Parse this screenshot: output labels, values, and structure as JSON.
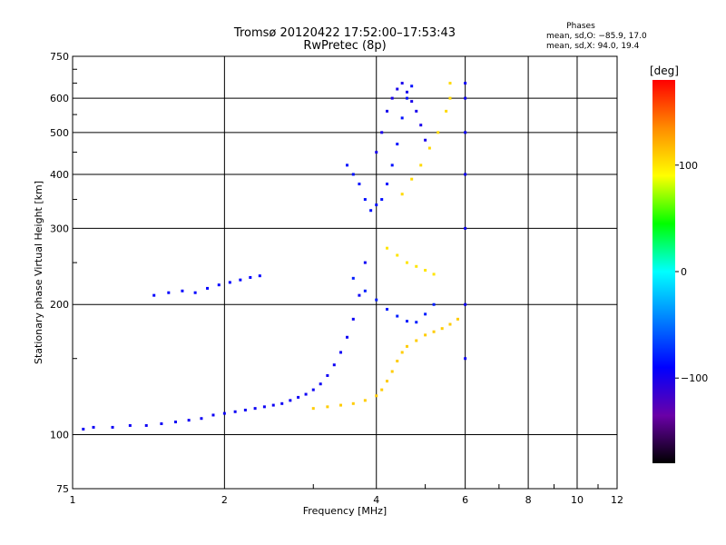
{
  "chart_data": {
    "type": "scatter",
    "title": "Tromsø 20120422 17:52:00–17:53:43",
    "subtitle": "RwPretec (8p)",
    "xlabel": "Frequency [MHz]",
    "ylabel": "Stationary phase Virtual Height [km]",
    "x_scale": "log",
    "y_scale": "log",
    "xlim": [
      1,
      12
    ],
    "ylim": [
      75,
      750
    ],
    "x_ticks": [
      1,
      2,
      4,
      6,
      8,
      10,
      12
    ],
    "x_tick_labels": [
      "1",
      "2",
      "4",
      "6",
      "8",
      "10",
      "12"
    ],
    "y_ticks": [
      75,
      100,
      200,
      300,
      400,
      500,
      600,
      750
    ],
    "y_tick_labels": [
      "75",
      "100",
      "200",
      "300",
      "400",
      "500",
      "600",
      "750"
    ],
    "grid": true,
    "stats": {
      "heading": "Phases",
      "line_o": "mean, sd,O: −85.9, 17.0",
      "line_x": "mean, sd,X:  94.0, 19.4"
    },
    "colorbar": {
      "label": "[deg]",
      "range": [
        -180,
        180
      ],
      "ticks": [
        100,
        0,
        -100
      ],
      "tick_labels": [
        "100",
        "0",
        "−100"
      ],
      "colors": [
        "#ff0000",
        "#ff8c00",
        "#ffff00",
        "#00ff00",
        "#00ffff",
        "#0080ff",
        "#0000ff",
        "#6a00a8",
        "#000000"
      ]
    },
    "series": [
      {
        "phase": -95,
        "points": [
          [
            1.05,
            103
          ],
          [
            1.1,
            104
          ],
          [
            1.2,
            104
          ],
          [
            1.3,
            105
          ],
          [
            1.4,
            105
          ],
          [
            1.5,
            106
          ],
          [
            1.6,
            107
          ],
          [
            1.7,
            108
          ],
          [
            1.8,
            109
          ],
          [
            1.9,
            111
          ],
          [
            2.0,
            112
          ],
          [
            2.1,
            113
          ],
          [
            2.2,
            114
          ],
          [
            2.3,
            115
          ],
          [
            2.4,
            116
          ],
          [
            2.5,
            117
          ],
          [
            2.6,
            118
          ],
          [
            2.7,
            120
          ],
          [
            2.8,
            122
          ],
          [
            2.9,
            124
          ],
          [
            3.0,
            127
          ],
          [
            3.1,
            131
          ],
          [
            3.2,
            137
          ],
          [
            3.3,
            145
          ],
          [
            3.4,
            155
          ],
          [
            3.5,
            168
          ],
          [
            3.6,
            185
          ],
          [
            3.7,
            210
          ],
          [
            3.8,
            250
          ]
        ]
      },
      {
        "phase": -90,
        "points": [
          [
            1.45,
            210
          ],
          [
            1.55,
            213
          ],
          [
            1.65,
            215
          ],
          [
            1.75,
            213
          ],
          [
            1.85,
            218
          ],
          [
            1.95,
            222
          ],
          [
            2.05,
            225
          ],
          [
            2.15,
            228
          ],
          [
            2.25,
            231
          ],
          [
            2.35,
            233
          ]
        ]
      },
      {
        "phase": -85,
        "points": [
          [
            3.5,
            420
          ],
          [
            3.6,
            400
          ],
          [
            3.7,
            380
          ],
          [
            3.8,
            350
          ],
          [
            3.9,
            330
          ],
          [
            4.0,
            340
          ],
          [
            4.1,
            350
          ],
          [
            4.2,
            380
          ],
          [
            4.3,
            420
          ],
          [
            4.4,
            470
          ],
          [
            4.5,
            540
          ],
          [
            4.6,
            600
          ],
          [
            4.7,
            640
          ]
        ]
      },
      {
        "phase": -100,
        "points": [
          [
            4.0,
            450
          ],
          [
            4.1,
            500
          ],
          [
            4.2,
            560
          ],
          [
            4.3,
            600
          ],
          [
            4.4,
            630
          ],
          [
            4.5,
            650
          ],
          [
            4.6,
            620
          ],
          [
            4.7,
            590
          ],
          [
            4.8,
            560
          ],
          [
            4.9,
            520
          ],
          [
            5.0,
            480
          ]
        ]
      },
      {
        "phase": -80,
        "points": [
          [
            3.6,
            230
          ],
          [
            3.8,
            215
          ],
          [
            4.0,
            205
          ],
          [
            4.2,
            195
          ],
          [
            4.4,
            188
          ],
          [
            4.6,
            183
          ],
          [
            4.8,
            182
          ],
          [
            5.0,
            190
          ],
          [
            5.2,
            200
          ]
        ]
      },
      {
        "phase": -95,
        "points": [
          [
            6.0,
            150
          ],
          [
            6.0,
            200
          ],
          [
            6.0,
            300
          ],
          [
            6.0,
            400
          ],
          [
            6.0,
            500
          ],
          [
            6.0,
            600
          ],
          [
            6.0,
            650
          ]
        ]
      },
      {
        "phase": 110,
        "points": [
          [
            3.0,
            115
          ],
          [
            3.2,
            116
          ],
          [
            3.4,
            117
          ],
          [
            3.6,
            118
          ],
          [
            3.8,
            120
          ],
          [
            4.0,
            123
          ],
          [
            4.1,
            127
          ],
          [
            4.2,
            133
          ],
          [
            4.3,
            140
          ],
          [
            4.4,
            148
          ],
          [
            4.5,
            155
          ],
          [
            4.6,
            160
          ],
          [
            4.8,
            165
          ],
          [
            5.0,
            170
          ],
          [
            5.2,
            173
          ],
          [
            5.4,
            176
          ],
          [
            5.6,
            180
          ],
          [
            5.8,
            185
          ]
        ]
      },
      {
        "phase": 100,
        "points": [
          [
            4.2,
            270
          ],
          [
            4.4,
            260
          ],
          [
            4.6,
            250
          ],
          [
            4.8,
            245
          ],
          [
            5.0,
            240
          ],
          [
            5.2,
            235
          ]
        ]
      },
      {
        "phase": 105,
        "points": [
          [
            4.5,
            360
          ],
          [
            4.7,
            390
          ],
          [
            4.9,
            420
          ],
          [
            5.1,
            460
          ],
          [
            5.3,
            500
          ],
          [
            5.5,
            560
          ],
          [
            5.6,
            600
          ],
          [
            5.6,
            650
          ]
        ]
      }
    ]
  }
}
